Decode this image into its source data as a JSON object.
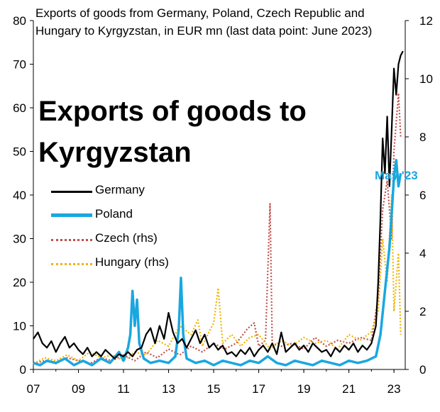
{
  "chart_data": {
    "type": "line",
    "title": "Exports of goods to Kyrgyzstan",
    "subtitle": "Exports of goods from Germany, Poland, Czech Republic and Hungary to Kyrgyzstan, in EUR mn (last data point: June 2023)",
    "annotation": "May '23",
    "x_ticks": [
      "07",
      "09",
      "11",
      "13",
      "15",
      "17",
      "19",
      "21",
      "23"
    ],
    "y_left": {
      "ylim": [
        0,
        80
      ],
      "ticks": [
        0,
        10,
        20,
        30,
        40,
        50,
        60,
        70,
        80
      ]
    },
    "y_right": {
      "ylim": [
        0,
        12
      ],
      "ticks": [
        0,
        2,
        4,
        6,
        8,
        10,
        12
      ]
    },
    "x_range": [
      2007.0,
      2023.5
    ],
    "series": [
      {
        "name": "Germany",
        "axis": "left",
        "color": "#000000",
        "style": "solid",
        "points": [
          [
            2007.0,
            7
          ],
          [
            2007.2,
            8.5
          ],
          [
            2007.4,
            6
          ],
          [
            2007.6,
            5
          ],
          [
            2007.8,
            6.5
          ],
          [
            2008.0,
            4
          ],
          [
            2008.2,
            6
          ],
          [
            2008.4,
            7.5
          ],
          [
            2008.6,
            5
          ],
          [
            2008.8,
            6
          ],
          [
            2009.0,
            4.5
          ],
          [
            2009.2,
            3.5
          ],
          [
            2009.4,
            5
          ],
          [
            2009.6,
            3
          ],
          [
            2009.8,
            4
          ],
          [
            2010.0,
            3
          ],
          [
            2010.2,
            4.5
          ],
          [
            2010.4,
            3.5
          ],
          [
            2010.6,
            2.5
          ],
          [
            2010.8,
            3.5
          ],
          [
            2011.0,
            3
          ],
          [
            2011.2,
            4
          ],
          [
            2011.4,
            3
          ],
          [
            2011.6,
            4.5
          ],
          [
            2011.8,
            5
          ],
          [
            2012.0,
            8
          ],
          [
            2012.2,
            9.5
          ],
          [
            2012.4,
            6
          ],
          [
            2012.6,
            10
          ],
          [
            2012.8,
            7
          ],
          [
            2013.0,
            13
          ],
          [
            2013.2,
            8.5
          ],
          [
            2013.4,
            6
          ],
          [
            2013.6,
            7
          ],
          [
            2013.8,
            5
          ],
          [
            2014.0,
            7
          ],
          [
            2014.2,
            9
          ],
          [
            2014.4,
            6
          ],
          [
            2014.6,
            8
          ],
          [
            2014.8,
            5
          ],
          [
            2015.0,
            6
          ],
          [
            2015.2,
            4.5
          ],
          [
            2015.4,
            5.5
          ],
          [
            2015.6,
            3.5
          ],
          [
            2015.8,
            4
          ],
          [
            2016.0,
            3
          ],
          [
            2016.2,
            4.5
          ],
          [
            2016.4,
            3.5
          ],
          [
            2016.6,
            5
          ],
          [
            2016.8,
            3
          ],
          [
            2017.0,
            4.5
          ],
          [
            2017.2,
            5.5
          ],
          [
            2017.4,
            4
          ],
          [
            2017.6,
            6
          ],
          [
            2017.8,
            3.5
          ],
          [
            2018.0,
            8.5
          ],
          [
            2018.2,
            4
          ],
          [
            2018.4,
            5
          ],
          [
            2018.6,
            6
          ],
          [
            2018.8,
            4.5
          ],
          [
            2019.0,
            5.5
          ],
          [
            2019.2,
            4
          ],
          [
            2019.4,
            6
          ],
          [
            2019.6,
            5
          ],
          [
            2019.8,
            4
          ],
          [
            2020.0,
            4.5
          ],
          [
            2020.2,
            3
          ],
          [
            2020.4,
            5
          ],
          [
            2020.6,
            4
          ],
          [
            2020.8,
            5.5
          ],
          [
            2021.0,
            4.5
          ],
          [
            2021.2,
            6
          ],
          [
            2021.4,
            4
          ],
          [
            2021.6,
            5.5
          ],
          [
            2021.8,
            4.5
          ],
          [
            2022.0,
            6
          ],
          [
            2022.2,
            10
          ],
          [
            2022.3,
            20
          ],
          [
            2022.4,
            35
          ],
          [
            2022.5,
            53
          ],
          [
            2022.6,
            45
          ],
          [
            2022.7,
            58
          ],
          [
            2022.8,
            42
          ],
          [
            2022.9,
            55
          ],
          [
            2023.0,
            69
          ],
          [
            2023.1,
            63
          ],
          [
            2023.2,
            70
          ],
          [
            2023.3,
            72
          ],
          [
            2023.4,
            73
          ]
        ]
      },
      {
        "name": "Poland",
        "axis": "left",
        "color": "#1aa7e0",
        "style": "solid",
        "points": [
          [
            2007.0,
            1.5
          ],
          [
            2007.3,
            1
          ],
          [
            2007.6,
            2
          ],
          [
            2008.0,
            1.5
          ],
          [
            2008.4,
            2.5
          ],
          [
            2008.8,
            1
          ],
          [
            2009.2,
            2
          ],
          [
            2009.6,
            1
          ],
          [
            2010.0,
            2.5
          ],
          [
            2010.4,
            1.5
          ],
          [
            2010.8,
            4
          ],
          [
            2011.0,
            2
          ],
          [
            2011.2,
            5
          ],
          [
            2011.3,
            8
          ],
          [
            2011.4,
            18
          ],
          [
            2011.5,
            10
          ],
          [
            2011.6,
            16
          ],
          [
            2011.7,
            6
          ],
          [
            2011.9,
            2.5
          ],
          [
            2012.2,
            1.5
          ],
          [
            2012.6,
            2
          ],
          [
            2013.0,
            1.5
          ],
          [
            2013.3,
            3
          ],
          [
            2013.45,
            9
          ],
          [
            2013.55,
            21
          ],
          [
            2013.65,
            8
          ],
          [
            2013.8,
            2.5
          ],
          [
            2014.2,
            1.5
          ],
          [
            2014.6,
            2
          ],
          [
            2015.0,
            1
          ],
          [
            2015.4,
            2
          ],
          [
            2015.8,
            1.5
          ],
          [
            2016.2,
            1
          ],
          [
            2016.6,
            2
          ],
          [
            2017.0,
            1.5
          ],
          [
            2017.4,
            3
          ],
          [
            2017.8,
            1.5
          ],
          [
            2018.2,
            1
          ],
          [
            2018.6,
            2
          ],
          [
            2019.0,
            1.5
          ],
          [
            2019.4,
            1
          ],
          [
            2019.8,
            2
          ],
          [
            2020.2,
            1.5
          ],
          [
            2020.6,
            1
          ],
          [
            2021.0,
            2
          ],
          [
            2021.4,
            1.5
          ],
          [
            2021.8,
            2
          ],
          [
            2022.2,
            3
          ],
          [
            2022.4,
            8
          ],
          [
            2022.6,
            18
          ],
          [
            2022.8,
            28
          ],
          [
            2023.0,
            44
          ],
          [
            2023.1,
            48
          ],
          [
            2023.2,
            42
          ],
          [
            2023.3,
            45
          ]
        ]
      },
      {
        "name": "Czech (rhs)",
        "axis": "right",
        "color": "#c0504d",
        "style": "dotted",
        "points": [
          [
            2007.0,
            0.2
          ],
          [
            2007.5,
            0.3
          ],
          [
            2008.0,
            0.2
          ],
          [
            2008.5,
            0.4
          ],
          [
            2009.0,
            0.3
          ],
          [
            2009.5,
            0.2
          ],
          [
            2010.0,
            0.4
          ],
          [
            2010.5,
            0.3
          ],
          [
            2011.0,
            0.5
          ],
          [
            2011.5,
            0.3
          ],
          [
            2012.0,
            0.6
          ],
          [
            2012.5,
            0.4
          ],
          [
            2013.0,
            0.7
          ],
          [
            2013.5,
            0.5
          ],
          [
            2014.0,
            0.8
          ],
          [
            2014.5,
            0.6
          ],
          [
            2015.0,
            0.9
          ],
          [
            2015.5,
            0.7
          ],
          [
            2016.0,
            0.9
          ],
          [
            2016.5,
            1.4
          ],
          [
            2016.8,
            1.6
          ],
          [
            2017.0,
            0.8
          ],
          [
            2017.3,
            1.0
          ],
          [
            2017.5,
            5.7
          ],
          [
            2017.6,
            0.9
          ],
          [
            2018.0,
            0.8
          ],
          [
            2018.5,
            0.9
          ],
          [
            2019.0,
            0.7
          ],
          [
            2019.5,
            1.1
          ],
          [
            2020.0,
            0.8
          ],
          [
            2020.5,
            1.0
          ],
          [
            2021.0,
            0.9
          ],
          [
            2021.5,
            1.1
          ],
          [
            2022.0,
            1.0
          ],
          [
            2022.3,
            2.5
          ],
          [
            2022.5,
            5.5
          ],
          [
            2022.7,
            6.5
          ],
          [
            2022.9,
            4.5
          ],
          [
            2023.0,
            7.5
          ],
          [
            2023.2,
            9.5
          ],
          [
            2023.3,
            8
          ]
        ]
      },
      {
        "name": "Hungary (rhs)",
        "axis": "right",
        "color": "#f0b400",
        "style": "dotted",
        "points": [
          [
            2007.0,
            0.2
          ],
          [
            2007.5,
            0.4
          ],
          [
            2008.0,
            0.3
          ],
          [
            2008.5,
            0.5
          ],
          [
            2009.0,
            0.3
          ],
          [
            2009.5,
            0.6
          ],
          [
            2010.0,
            0.4
          ],
          [
            2010.5,
            0.5
          ],
          [
            2011.0,
            0.3
          ],
          [
            2011.5,
            0.6
          ],
          [
            2012.0,
            0.5
          ],
          [
            2012.5,
            1.0
          ],
          [
            2013.0,
            0.8
          ],
          [
            2013.5,
            1.5
          ],
          [
            2014.0,
            1.2
          ],
          [
            2014.3,
            1.7
          ],
          [
            2014.5,
            0.8
          ],
          [
            2014.8,
            1.3
          ],
          [
            2015.0,
            1.6
          ],
          [
            2015.2,
            2.8
          ],
          [
            2015.4,
            0.9
          ],
          [
            2015.8,
            1.2
          ],
          [
            2016.2,
            0.8
          ],
          [
            2016.6,
            1.1
          ],
          [
            2017.0,
            1.2
          ],
          [
            2017.5,
            0.7
          ],
          [
            2018.0,
            1.0
          ],
          [
            2018.5,
            0.8
          ],
          [
            2019.0,
            1.1
          ],
          [
            2019.5,
            0.9
          ],
          [
            2020.0,
            1.0
          ],
          [
            2020.5,
            0.7
          ],
          [
            2021.0,
            1.2
          ],
          [
            2021.5,
            1.0
          ],
          [
            2022.0,
            1.3
          ],
          [
            2022.3,
            2.0
          ],
          [
            2022.5,
            4.5
          ],
          [
            2022.7,
            3.0
          ],
          [
            2022.9,
            6.0
          ],
          [
            2023.0,
            2.0
          ],
          [
            2023.2,
            4.0
          ],
          [
            2023.3,
            1.2
          ]
        ]
      }
    ],
    "legend": {
      "position": "left-center",
      "items": [
        {
          "label": "Germany",
          "color": "#000000",
          "style": "solid"
        },
        {
          "label": "Poland",
          "color": "#1aa7e0",
          "style": "solid"
        },
        {
          "label": "Czech (rhs)",
          "color": "#c0504d",
          "style": "dotted"
        },
        {
          "label": "Hungary (rhs)",
          "color": "#f0b400",
          "style": "dotted"
        }
      ]
    },
    "grid": false
  }
}
